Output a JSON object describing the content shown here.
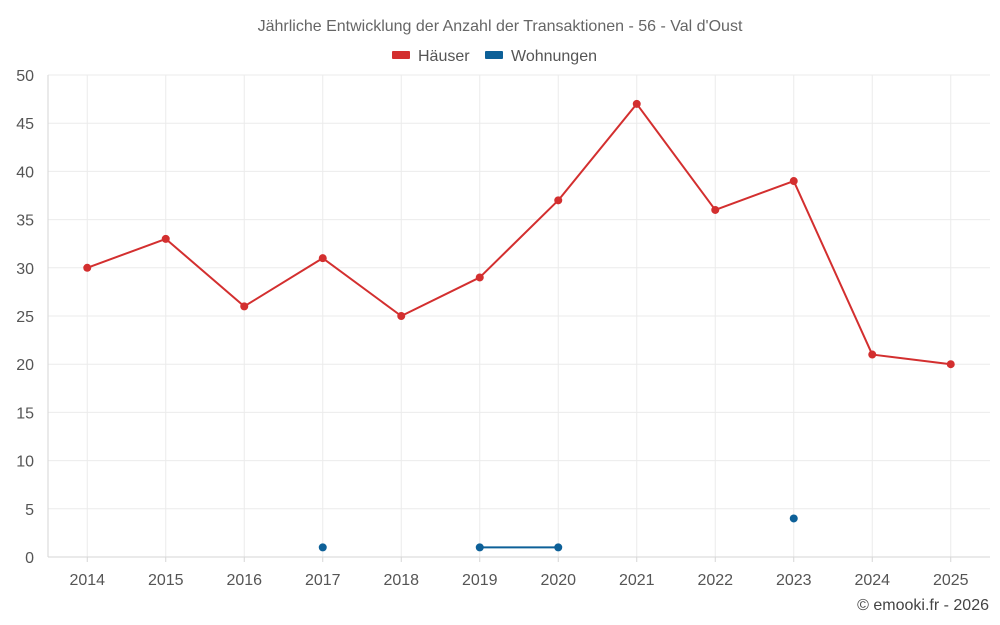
{
  "chart_data": {
    "type": "line",
    "title": "Jährliche Entwicklung der Anzahl der Transaktionen - 56 - Val d'Oust",
    "categories": [
      "2014",
      "2015",
      "2016",
      "2017",
      "2018",
      "2019",
      "2020",
      "2021",
      "2022",
      "2023",
      "2024",
      "2025"
    ],
    "ylim": [
      0,
      50
    ],
    "yticks": [
      0,
      5,
      10,
      15,
      20,
      25,
      30,
      35,
      40,
      45,
      50
    ],
    "xlabel": "",
    "ylabel": "",
    "grid": true,
    "legend_position": "top-center",
    "series": [
      {
        "name": "Häuser",
        "color": "#d32f2f",
        "values": [
          30,
          33,
          26,
          31,
          25,
          29,
          37,
          47,
          36,
          39,
          21,
          20
        ]
      },
      {
        "name": "Wohnungen",
        "color": "#0d6098",
        "values": [
          null,
          null,
          null,
          1,
          null,
          1,
          1,
          null,
          null,
          4,
          null,
          null
        ]
      }
    ]
  },
  "credit": "© emooki.fr - 2026"
}
